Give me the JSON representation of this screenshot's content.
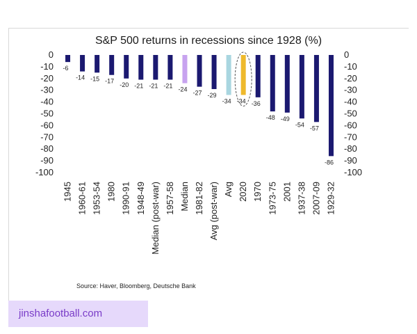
{
  "chart_data": {
    "type": "bar",
    "title": "S&P 500 returns in recessions since 1928 (%)",
    "xlabel": "",
    "ylabel": "",
    "ylim": [
      -100,
      0
    ],
    "yticks": [
      0,
      -10,
      -20,
      -30,
      -40,
      -50,
      -60,
      -70,
      -80,
      -90,
      -100
    ],
    "categories": [
      "1945",
      "1960-61",
      "1953-54",
      "1980",
      "1990-91",
      "1948-49",
      "Median (post-war)",
      "1957-58",
      "Median",
      "1981-82",
      "Avg (post-war)",
      "Avg",
      "2020",
      "1970",
      "1973-75",
      "2001",
      "1937-38",
      "2007-09",
      "1929-32"
    ],
    "values": [
      -6,
      -14,
      -15,
      -17,
      -20,
      -21,
      -21,
      -21,
      -24,
      -27,
      -29,
      -34,
      -34,
      -36,
      -48,
      -49,
      -54,
      -57,
      -86
    ],
    "bar_colors": [
      "#1b1970",
      "#1b1970",
      "#1b1970",
      "#1b1970",
      "#1b1970",
      "#1b1970",
      "#1b1970",
      "#1b1970",
      "#c7a3ef",
      "#1b1970",
      "#1b1970",
      "#a9d6e0",
      "#eeb92c",
      "#1b1970",
      "#1b1970",
      "#1b1970",
      "#1b1970",
      "#1b1970",
      "#1b1970"
    ],
    "highlight": "2020",
    "grid": false,
    "legend": "none"
  },
  "source": "Source: Haver, Bloomberg, Deutsche Bank",
  "watermark": "jinshafootball.com"
}
